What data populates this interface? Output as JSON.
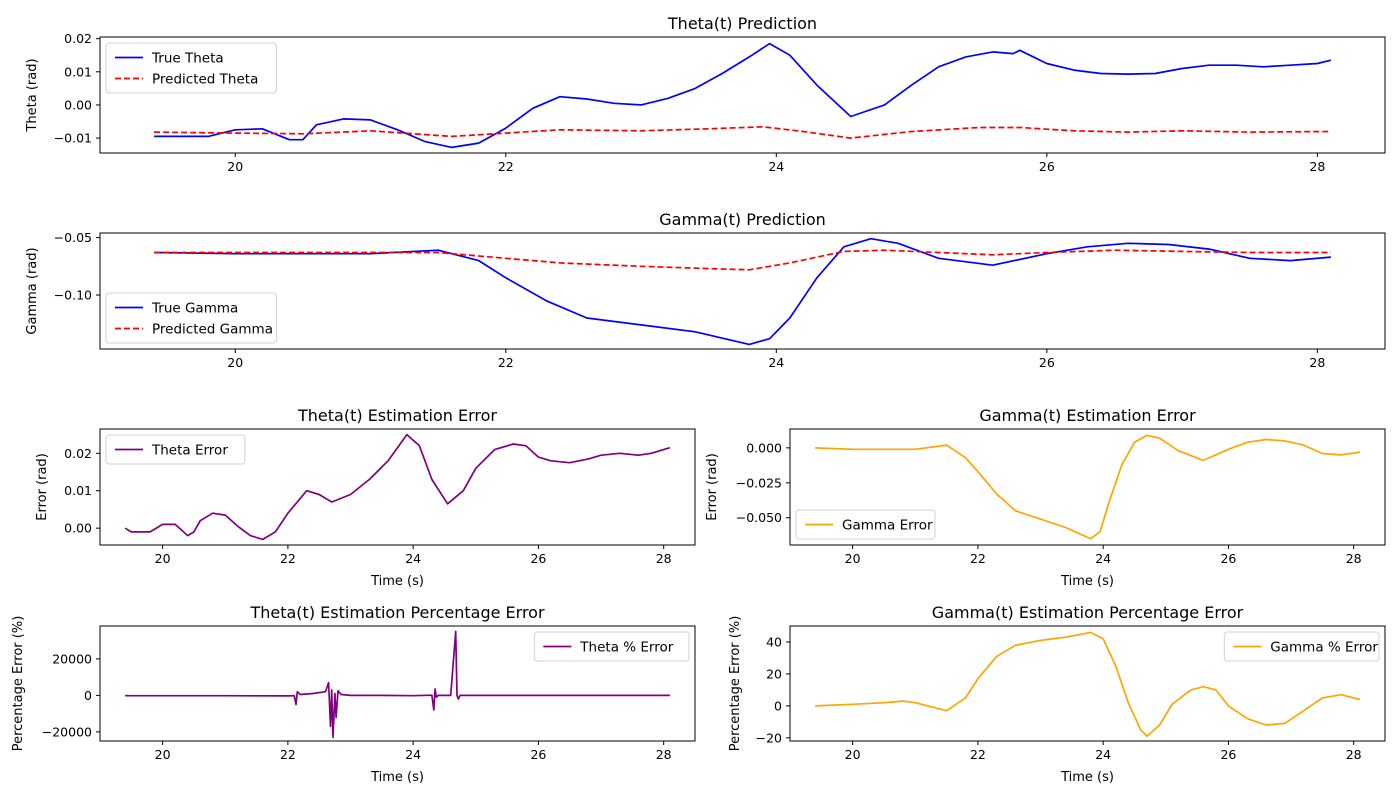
{
  "chart_data": [
    {
      "type": "line",
      "title": "Theta(t) Prediction",
      "xlabel": "",
      "ylabel": "Theta (rad)",
      "xlim": [
        19.0,
        28.5
      ],
      "ylim": [
        -0.0145,
        0.0205
      ],
      "xticks": [
        20,
        22,
        24,
        26,
        28
      ],
      "xtick_labels": [
        "20",
        "22",
        "24",
        "26",
        "28"
      ],
      "yticks": [
        -0.01,
        0.0,
        0.01,
        0.02
      ],
      "ytick_labels": [
        "−0.01",
        "0.00",
        "0.01",
        "0.02"
      ],
      "legend": "top-left",
      "grid": false,
      "series": [
        {
          "name": "True Theta",
          "color": "#0000ff",
          "dash": "solid",
          "x": [
            19.4,
            19.6,
            19.8,
            20.0,
            20.2,
            20.4,
            20.5,
            20.6,
            20.8,
            21.0,
            21.2,
            21.4,
            21.6,
            21.8,
            22.0,
            22.2,
            22.4,
            22.6,
            22.8,
            23.0,
            23.2,
            23.4,
            23.6,
            23.8,
            23.95,
            24.1,
            24.3,
            24.55,
            24.8,
            25.0,
            25.2,
            25.4,
            25.6,
            25.75,
            25.8,
            26.0,
            26.2,
            26.4,
            26.6,
            26.8,
            27.0,
            27.2,
            27.4,
            27.6,
            27.8,
            28.0,
            28.1
          ],
          "y": [
            -0.0095,
            -0.0095,
            -0.0095,
            -0.0075,
            -0.0072,
            -0.0105,
            -0.0105,
            -0.006,
            -0.0042,
            -0.0045,
            -0.0075,
            -0.011,
            -0.0128,
            -0.0115,
            -0.007,
            -0.001,
            0.0025,
            0.0018,
            0.0005,
            0.0,
            0.002,
            0.005,
            0.0095,
            0.0145,
            0.0185,
            0.015,
            0.006,
            -0.0035,
            0.0,
            0.006,
            0.0115,
            0.0145,
            0.016,
            0.0155,
            0.0165,
            0.0125,
            0.0105,
            0.0095,
            0.0093,
            0.0095,
            0.011,
            0.012,
            0.012,
            0.0115,
            0.012,
            0.0125,
            0.0135
          ]
        },
        {
          "name": "Predicted Theta",
          "color": "#ff0000",
          "dash": "dashed",
          "x": [
            19.4,
            20.0,
            20.5,
            21.0,
            21.6,
            22.0,
            22.4,
            23.0,
            23.5,
            23.9,
            24.2,
            24.55,
            25.0,
            25.5,
            25.8,
            26.2,
            26.6,
            27.0,
            27.5,
            28.1
          ],
          "y": [
            -0.0082,
            -0.0085,
            -0.0087,
            -0.0078,
            -0.0095,
            -0.0085,
            -0.0075,
            -0.0078,
            -0.0072,
            -0.0066,
            -0.008,
            -0.01,
            -0.008,
            -0.0068,
            -0.0068,
            -0.0078,
            -0.0082,
            -0.0078,
            -0.0082,
            -0.008
          ]
        }
      ]
    },
    {
      "type": "line",
      "title": "Gamma(t) Prediction",
      "xlabel": "",
      "ylabel": "Gamma (rad)",
      "xlim": [
        19.0,
        28.5
      ],
      "ylim": [
        -0.147,
        -0.046
      ],
      "xticks": [
        20,
        22,
        24,
        26,
        28
      ],
      "xtick_labels": [
        "20",
        "22",
        "24",
        "26",
        "28"
      ],
      "yticks": [
        -0.1,
        -0.05
      ],
      "ytick_labels": [
        "−0.10",
        "−0.05"
      ],
      "legend": "bottom-left",
      "grid": false,
      "series": [
        {
          "name": "True Gamma",
          "color": "#0000ff",
          "dash": "solid",
          "x": [
            19.4,
            20.0,
            20.5,
            21.0,
            21.5,
            21.8,
            22.0,
            22.3,
            22.6,
            23.0,
            23.4,
            23.8,
            23.95,
            24.1,
            24.3,
            24.5,
            24.7,
            24.9,
            25.2,
            25.6,
            26.0,
            26.3,
            26.6,
            26.9,
            27.2,
            27.5,
            27.8,
            28.1
          ],
          "y": [
            -0.063,
            -0.064,
            -0.064,
            -0.064,
            -0.061,
            -0.07,
            -0.085,
            -0.105,
            -0.12,
            -0.126,
            -0.132,
            -0.143,
            -0.138,
            -0.12,
            -0.085,
            -0.058,
            -0.051,
            -0.055,
            -0.068,
            -0.074,
            -0.064,
            -0.058,
            -0.055,
            -0.056,
            -0.06,
            -0.068,
            -0.07,
            -0.067
          ]
        },
        {
          "name": "Predicted Gamma",
          "color": "#ff0000",
          "dash": "dashed",
          "x": [
            19.4,
            20.0,
            20.5,
            21.0,
            21.5,
            22.0,
            22.4,
            23.0,
            23.5,
            23.8,
            24.1,
            24.5,
            24.8,
            25.2,
            25.6,
            26.0,
            26.5,
            27.0,
            27.5,
            28.1
          ],
          "y": [
            -0.063,
            -0.063,
            -0.063,
            -0.063,
            -0.063,
            -0.068,
            -0.072,
            -0.075,
            -0.077,
            -0.078,
            -0.072,
            -0.062,
            -0.061,
            -0.063,
            -0.065,
            -0.063,
            -0.061,
            -0.062,
            -0.063,
            -0.063
          ]
        }
      ]
    },
    {
      "type": "line",
      "title": "Theta(t)  Estimation Error",
      "xlabel": "Time (s)",
      "ylabel": "Error (rad)",
      "xlim": [
        19.0,
        28.5
      ],
      "ylim": [
        -0.0045,
        0.0265
      ],
      "xticks": [
        20,
        22,
        24,
        26,
        28
      ],
      "xtick_labels": [
        "20",
        "22",
        "24",
        "26",
        "28"
      ],
      "yticks": [
        0.0,
        0.01,
        0.02
      ],
      "ytick_labels": [
        "0.00",
        "0.01",
        "0.02"
      ],
      "legend": "top-left",
      "grid": false,
      "series": [
        {
          "name": "Theta Error",
          "color": "#800080",
          "dash": "solid",
          "x": [
            19.4,
            19.5,
            19.8,
            20.0,
            20.2,
            20.4,
            20.5,
            20.6,
            20.8,
            21.0,
            21.2,
            21.4,
            21.6,
            21.8,
            22.0,
            22.3,
            22.5,
            22.7,
            23.0,
            23.3,
            23.6,
            23.9,
            24.1,
            24.3,
            24.55,
            24.8,
            25.0,
            25.3,
            25.6,
            25.8,
            26.0,
            26.2,
            26.5,
            26.8,
            27.0,
            27.3,
            27.6,
            27.8,
            28.0,
            28.1
          ],
          "y": [
            0.0,
            -0.001,
            -0.001,
            0.001,
            0.001,
            -0.002,
            -0.001,
            0.002,
            0.004,
            0.0035,
            0.0005,
            -0.002,
            -0.003,
            -0.001,
            0.004,
            0.01,
            0.009,
            0.007,
            0.009,
            0.013,
            0.018,
            0.025,
            0.022,
            0.013,
            0.0065,
            0.01,
            0.016,
            0.021,
            0.0225,
            0.022,
            0.019,
            0.018,
            0.0175,
            0.0185,
            0.0195,
            0.02,
            0.0195,
            0.02,
            0.021,
            0.0215
          ]
        }
      ]
    },
    {
      "type": "line",
      "title": "Gamma(t)  Estimation Error",
      "xlabel": "Time (s)",
      "ylabel": "Error (rad)",
      "xlim": [
        19.0,
        28.5
      ],
      "ylim": [
        -0.0695,
        0.0135
      ],
      "xticks": [
        20,
        22,
        24,
        26,
        28
      ],
      "xtick_labels": [
        "20",
        "22",
        "24",
        "26",
        "28"
      ],
      "yticks": [
        -0.05,
        -0.025,
        0.0
      ],
      "ytick_labels": [
        "−0.050",
        "−0.025",
        "0.000"
      ],
      "legend": "bottom-left",
      "grid": false,
      "series": [
        {
          "name": "Gamma Error",
          "color": "#ffa500",
          "dash": "solid",
          "x": [
            19.4,
            20.0,
            20.5,
            21.0,
            21.5,
            21.8,
            22.0,
            22.3,
            22.6,
            23.0,
            23.4,
            23.8,
            23.95,
            24.1,
            24.3,
            24.5,
            24.7,
            24.9,
            25.2,
            25.6,
            26.0,
            26.3,
            26.6,
            26.9,
            27.2,
            27.5,
            27.8,
            28.1
          ],
          "y": [
            0.0,
            -0.001,
            -0.001,
            -0.001,
            0.002,
            -0.007,
            -0.017,
            -0.033,
            -0.045,
            -0.051,
            -0.057,
            -0.065,
            -0.06,
            -0.038,
            -0.012,
            0.004,
            0.009,
            0.007,
            -0.002,
            -0.009,
            -0.001,
            0.004,
            0.006,
            0.005,
            0.002,
            -0.004,
            -0.005,
            -0.003
          ]
        }
      ]
    },
    {
      "type": "line",
      "title": "Theta(t) Estimation Percentage Error",
      "xlabel": "Time (s)",
      "ylabel": "Percentage Error (%)",
      "xlim": [
        19.0,
        28.5
      ],
      "ylim": [
        -25000,
        38000
      ],
      "xticks": [
        20,
        22,
        24,
        26,
        28
      ],
      "xtick_labels": [
        "20",
        "22",
        "24",
        "26",
        "28"
      ],
      "yticks": [
        -20000,
        0,
        20000
      ],
      "ytick_labels": [
        "−20000",
        "0",
        "20000"
      ],
      "legend": "top-right",
      "grid": false,
      "series": [
        {
          "name": "Theta % Error",
          "color": "#800080",
          "dash": "solid",
          "x": [
            19.4,
            20.0,
            21.0,
            22.0,
            22.1,
            22.13,
            22.15,
            22.2,
            22.4,
            22.6,
            22.65,
            22.68,
            22.7,
            22.72,
            22.75,
            22.77,
            22.8,
            22.85,
            23.0,
            23.5,
            24.0,
            24.3,
            24.33,
            24.35,
            24.37,
            24.4,
            24.6,
            24.68,
            24.7,
            24.72,
            24.75,
            25.0,
            26.0,
            27.0,
            28.1
          ],
          "y": [
            -200,
            -200,
            -200,
            -300,
            -200,
            -5000,
            2000,
            500,
            1000,
            2000,
            7000,
            -17000,
            3000,
            -23000,
            1000,
            -12000,
            2500,
            500,
            0,
            0,
            -200,
            100,
            -8000,
            3500,
            -1000,
            0,
            0,
            35000,
            0,
            -2000,
            0,
            0,
            0,
            0,
            0
          ]
        }
      ]
    },
    {
      "type": "line",
      "title": "Gamma(t)  Estimation Percentage Error",
      "xlabel": "Time (s)",
      "ylabel": "Percentage Error (%)",
      "xlim": [
        19.0,
        28.5
      ],
      "ylim": [
        -22,
        50
      ],
      "xticks": [
        20,
        22,
        24,
        26,
        28
      ],
      "xtick_labels": [
        "20",
        "22",
        "24",
        "26",
        "28"
      ],
      "yticks": [
        -20,
        0,
        20,
        40
      ],
      "ytick_labels": [
        "−20",
        "0",
        "20",
        "40"
      ],
      "legend": "top-right",
      "grid": false,
      "series": [
        {
          "name": "Gamma % Error",
          "color": "#ffa500",
          "dash": "solid",
          "x": [
            19.4,
            20.0,
            20.5,
            20.8,
            21.0,
            21.5,
            21.8,
            22.0,
            22.3,
            22.6,
            23.0,
            23.4,
            23.8,
            24.0,
            24.2,
            24.4,
            24.6,
            24.7,
            24.9,
            25.1,
            25.4,
            25.6,
            25.8,
            26.0,
            26.3,
            26.6,
            26.9,
            27.2,
            27.5,
            27.8,
            28.1
          ],
          "y": [
            0,
            1,
            2,
            3,
            2,
            -3,
            5,
            17,
            31,
            38,
            41,
            43,
            46,
            42,
            25,
            2,
            -15,
            -19,
            -12,
            1,
            10,
            12,
            10,
            0,
            -8,
            -12,
            -11,
            -3,
            5,
            7,
            4
          ]
        }
      ]
    }
  ]
}
